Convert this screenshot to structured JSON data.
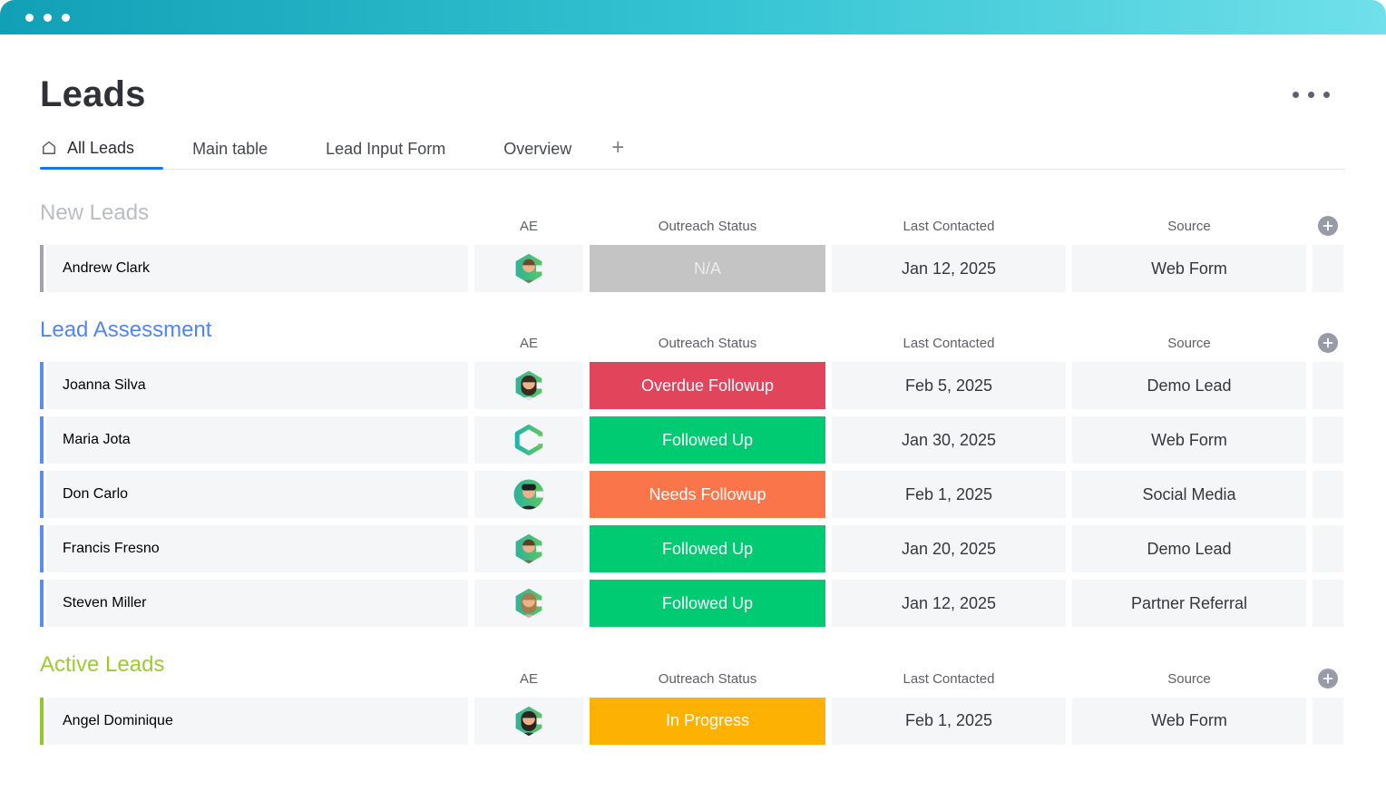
{
  "window": {
    "control_dots": 3
  },
  "header": {
    "title": "Leads"
  },
  "tabs": {
    "items": [
      {
        "label": "All Leads",
        "icon": "home-icon",
        "active": true
      },
      {
        "label": "Main table",
        "active": false
      },
      {
        "label": "Lead Input Form",
        "active": false
      },
      {
        "label": "Overview",
        "active": false
      }
    ],
    "add_label": "+",
    "active_underline_color": "#1a74f0"
  },
  "columns": [
    "AE",
    "Outreach Status",
    "Last Contacted",
    "Source"
  ],
  "status_colors": {
    "na": "#c4c4c4",
    "overdue_followup": "#e2445c",
    "followed_up": "#00ca72",
    "needs_followup": "#fa764a",
    "in_progress": "#fcb103"
  },
  "topbar_gradient": [
    "#11a0b6",
    "#70e0ea"
  ],
  "groups": [
    {
      "title": "New Leads",
      "color": "#b9bdc4",
      "accent": "#a3a5ab",
      "rows": [
        {
          "name": "Andrew Clark",
          "avatar": "man-short-hair-avatar",
          "status": {
            "label": "N/A",
            "bg": "#c4c4c4",
            "fg": "#ececec"
          },
          "last_contacted": "Jan 12, 2025",
          "source": "Web Form"
        }
      ]
    },
    {
      "title": "Lead Assessment",
      "color": "#4e86f7",
      "accent": "#5a8df5",
      "rows": [
        {
          "name": "Joanna Silva",
          "avatar": "woman-dark-hair-avatar",
          "status": {
            "label": "Overdue Followup",
            "bg": "#e2445c"
          },
          "last_contacted": "Feb 5, 2025",
          "source": "Demo Lead"
        },
        {
          "name": "Maria Jota",
          "avatar": "hexagon-c-logo-avatar",
          "status": {
            "label": "Followed Up",
            "bg": "#00ca72"
          },
          "last_contacted": "Jan 30, 2025",
          "source": "Web Form"
        },
        {
          "name": "Don Carlo",
          "avatar": "man-beanie-avatar",
          "status": {
            "label": "Needs Followup",
            "bg": "#fa764a"
          },
          "last_contacted": "Feb 1, 2025",
          "source": "Social Media"
        },
        {
          "name": "Francis Fresno",
          "avatar": "man-beard-avatar",
          "status": {
            "label": "Followed Up",
            "bg": "#00ca72"
          },
          "last_contacted": "Jan 20, 2025",
          "source": "Demo Lead"
        },
        {
          "name": "Steven Miller",
          "avatar": "person-long-hair-avatar",
          "status": {
            "label": "Followed Up",
            "bg": "#00ca72"
          },
          "last_contacted": "Jan 12, 2025",
          "source": "Partner Referral"
        }
      ]
    },
    {
      "title": "Active Leads",
      "color": "#9ccd2c",
      "accent": "#8fcb20",
      "rows": [
        {
          "name": "Angel Dominique",
          "avatar": "woman-dark-hair-avatar-2",
          "status": {
            "label": "In Progress",
            "bg": "#fcb103"
          },
          "last_contacted": "Feb 1, 2025",
          "source": "Web Form"
        }
      ]
    }
  ]
}
